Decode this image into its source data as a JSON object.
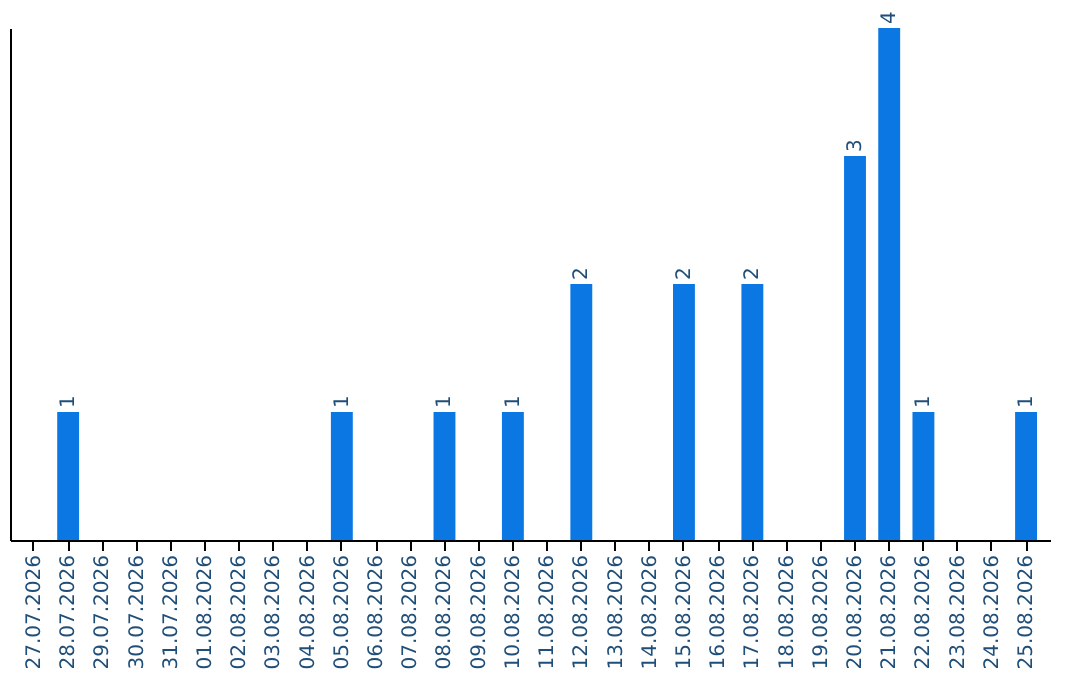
{
  "chart_data": {
    "type": "bar",
    "categories": [
      "27.07.2026",
      "28.07.2026",
      "29.07.2026",
      "30.07.2026",
      "31.07.2026",
      "01.08.2026",
      "02.08.2026",
      "03.08.2026",
      "04.08.2026",
      "05.08.2026",
      "06.08.2026",
      "07.08.2026",
      "08.08.2026",
      "09.08.2026",
      "10.08.2026",
      "11.08.2026",
      "12.08.2026",
      "13.08.2026",
      "14.08.2026",
      "15.08.2026",
      "16.08.2026",
      "17.08.2026",
      "18.08.2026",
      "19.08.2026",
      "20.08.2026",
      "21.08.2026",
      "22.08.2026",
      "23.08.2026",
      "24.08.2026",
      "25.08.2026"
    ],
    "values": [
      0,
      1,
      0,
      0,
      0,
      0,
      0,
      0,
      0,
      1,
      0,
      0,
      1,
      0,
      1,
      0,
      2,
      0,
      0,
      2,
      0,
      2,
      0,
      0,
      3,
      4,
      1,
      0,
      0,
      1
    ],
    "value_labels": [
      null,
      "1",
      null,
      null,
      null,
      null,
      null,
      null,
      null,
      "1",
      null,
      null,
      "1",
      null,
      "1",
      null,
      "2",
      null,
      null,
      "2",
      null,
      "2",
      null,
      null,
      "3",
      "4",
      "1",
      null,
      null,
      "1"
    ],
    "color": "#0a77e3",
    "tick_labels": "x",
    "grid": false
  }
}
